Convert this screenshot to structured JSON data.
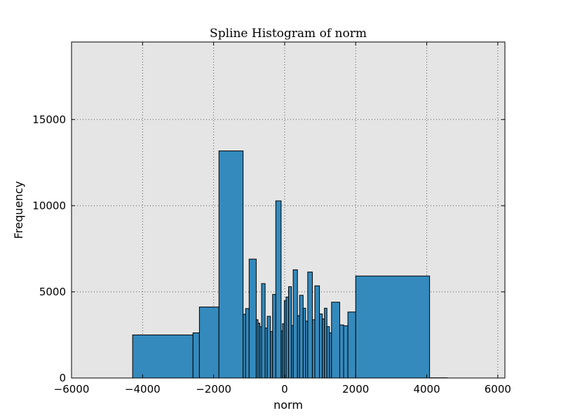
{
  "chart_data": {
    "type": "bar",
    "title": "Spline Histogram of norm",
    "xlabel": "norm",
    "ylabel": "Frequency",
    "xlim": [
      -6000,
      6200
    ],
    "ylim": [
      0,
      19500
    ],
    "xticks": [
      -6000,
      -4000,
      -2000,
      0,
      2000,
      4000,
      6000
    ],
    "xtick_labels": [
      "−6000",
      "−4000",
      "−2000",
      "0",
      "2000",
      "4000",
      "6000"
    ],
    "yticks": [
      0,
      5000,
      10000,
      15000
    ],
    "ytick_labels": [
      "0",
      "5000",
      "10000",
      "15000"
    ],
    "grid": true,
    "legend": "none",
    "colors": {
      "bar": "#348abd",
      "edge": "#000000",
      "plot_bg": "#e5e5e5",
      "grid": "#555555"
    },
    "bins": [
      {
        "x0": -4280,
        "x1": -2580,
        "count": 2500
      },
      {
        "x0": -2580,
        "x1": -2400,
        "count": 2620
      },
      {
        "x0": -2400,
        "x1": -1850,
        "count": 4120
      },
      {
        "x0": -1850,
        "x1": -1170,
        "count": 13180
      },
      {
        "x0": -1170,
        "x1": -1100,
        "count": 3700
      },
      {
        "x0": -1100,
        "x1": -1000,
        "count": 4030
      },
      {
        "x0": -1000,
        "x1": -800,
        "count": 6900
      },
      {
        "x0": -800,
        "x1": -750,
        "count": 3380
      },
      {
        "x0": -750,
        "x1": -700,
        "count": 3180
      },
      {
        "x0": -700,
        "x1": -650,
        "count": 2980
      },
      {
        "x0": -650,
        "x1": -550,
        "count": 5480
      },
      {
        "x0": -550,
        "x1": -490,
        "count": 2900
      },
      {
        "x0": -490,
        "x1": -400,
        "count": 3580
      },
      {
        "x0": -400,
        "x1": -340,
        "count": 2700
      },
      {
        "x0": -340,
        "x1": -250,
        "count": 4850
      },
      {
        "x0": -250,
        "x1": -100,
        "count": 10280
      },
      {
        "x0": -100,
        "x1": -60,
        "count": 2730
      },
      {
        "x0": -60,
        "x1": -10,
        "count": 3150
      },
      {
        "x0": -10,
        "x1": 40,
        "count": 4480
      },
      {
        "x0": 40,
        "x1": 110,
        "count": 4700
      },
      {
        "x0": 110,
        "x1": 190,
        "count": 5300
      },
      {
        "x0": 190,
        "x1": 240,
        "count": 3050
      },
      {
        "x0": 240,
        "x1": 360,
        "count": 6280
      },
      {
        "x0": 360,
        "x1": 420,
        "count": 3620
      },
      {
        "x0": 420,
        "x1": 520,
        "count": 4800
      },
      {
        "x0": 520,
        "x1": 590,
        "count": 4050
      },
      {
        "x0": 590,
        "x1": 650,
        "count": 3300
      },
      {
        "x0": 650,
        "x1": 780,
        "count": 6150
      },
      {
        "x0": 780,
        "x1": 850,
        "count": 3380
      },
      {
        "x0": 850,
        "x1": 980,
        "count": 5350
      },
      {
        "x0": 980,
        "x1": 1060,
        "count": 3720
      },
      {
        "x0": 1060,
        "x1": 1120,
        "count": 3430
      },
      {
        "x0": 1120,
        "x1": 1190,
        "count": 4050
      },
      {
        "x0": 1190,
        "x1": 1260,
        "count": 2980
      },
      {
        "x0": 1260,
        "x1": 1320,
        "count": 2620
      },
      {
        "x0": 1320,
        "x1": 1550,
        "count": 4400
      },
      {
        "x0": 1550,
        "x1": 1660,
        "count": 3080
      },
      {
        "x0": 1660,
        "x1": 1780,
        "count": 3030
      },
      {
        "x0": 1780,
        "x1": 2000,
        "count": 3830
      },
      {
        "x0": 2000,
        "x1": 4080,
        "count": 5920
      },
      {
        "x0": 4080,
        "x1": 4580,
        "count": 12
      }
    ]
  }
}
